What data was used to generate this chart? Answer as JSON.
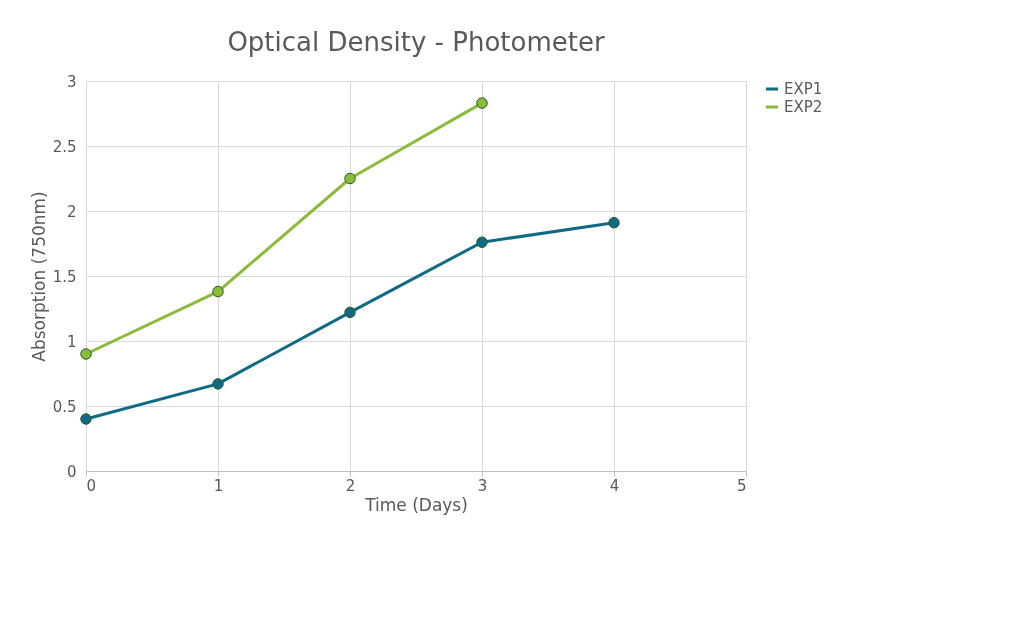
{
  "chart_data": {
    "type": "line",
    "title": "Optical Density - Photometer",
    "xlabel": "Time (Days)",
    "ylabel": "Absorption (750nm)",
    "xlim": [
      0,
      5
    ],
    "xticks": [
      0,
      1,
      2,
      3,
      4,
      5
    ],
    "ylim": [
      0,
      3
    ],
    "yticks": [
      0,
      0.5,
      1,
      1.5,
      2,
      2.5,
      3
    ],
    "grid": true,
    "legend": "right",
    "marker": "circle",
    "line_style": "solid",
    "series": [
      {
        "name": "EXP1",
        "color": "#106a86",
        "x": [
          0,
          1,
          2,
          3,
          4
        ],
        "values": [
          0.4,
          0.67,
          1.22,
          1.76,
          1.91
        ]
      },
      {
        "name": "EXP2",
        "color": "#8cbb3a",
        "x": [
          0,
          1,
          2,
          3
        ],
        "values": [
          0.9,
          1.38,
          2.25,
          2.83
        ]
      }
    ]
  }
}
